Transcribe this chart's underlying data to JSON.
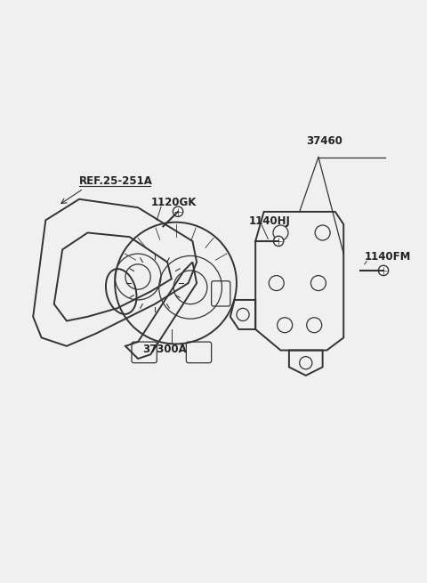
{
  "background_color": "#f0f0f0",
  "line_color": "#333333",
  "label_color": "#222222",
  "border_color": "#cccccc",
  "fig_width": 4.8,
  "fig_height": 6.55,
  "dpi": 100,
  "labels": {
    "ref": "REF.25-251A",
    "bolt1": "1120GK",
    "bolt2": "1140HJ",
    "part_num": "37460",
    "bracket": "1140FM",
    "alternator": "37300A"
  }
}
